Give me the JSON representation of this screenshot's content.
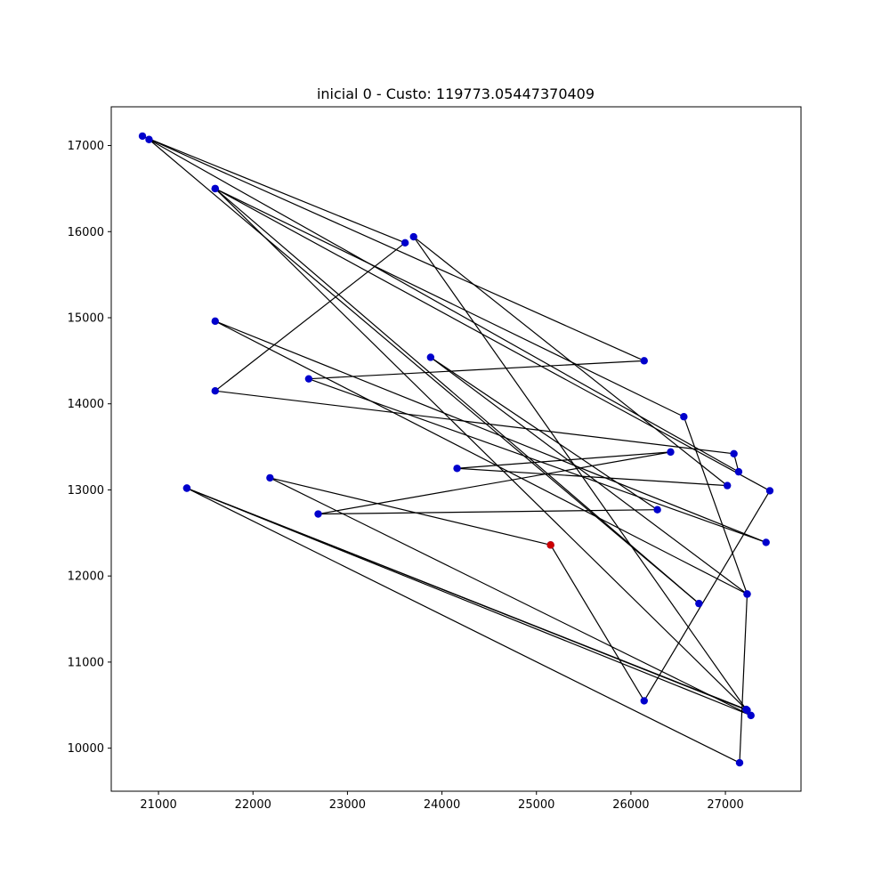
{
  "chart_data": {
    "type": "scatter",
    "title": "inicial 0 - Custo: 119773.05447370409",
    "xlabel": "",
    "ylabel": "",
    "xlim": [
      20500,
      27800
    ],
    "ylim": [
      9500,
      17450
    ],
    "x_ticks": [
      "21000",
      "22000",
      "23000",
      "24000",
      "25000",
      "26000",
      "27000"
    ],
    "y_ticks": [
      "10000",
      "11000",
      "12000",
      "13000",
      "14000",
      "15000",
      "16000",
      "17000"
    ],
    "grid": false,
    "legend": "none",
    "colors": {
      "points": "#0000cc",
      "start_point": "#cc0000",
      "path": "#000000"
    },
    "start_point": {
      "x": 25150,
      "y": 12360
    },
    "tour": [
      {
        "x": 25150,
        "y": 12360
      },
      {
        "x": 22180,
        "y": 13140
      },
      {
        "x": 27270,
        "y": 10380
      },
      {
        "x": 21300,
        "y": 13020
      },
      {
        "x": 27230,
        "y": 10440
      },
      {
        "x": 21600,
        "y": 16500
      },
      {
        "x": 26720,
        "y": 11680
      },
      {
        "x": 20900,
        "y": 17070
      },
      {
        "x": 27140,
        "y": 13210
      },
      {
        "x": 27090,
        "y": 13420
      },
      {
        "x": 21600,
        "y": 14150
      },
      {
        "x": 23610,
        "y": 15870
      },
      {
        "x": 20830,
        "y": 17110
      },
      {
        "x": 26140,
        "y": 14500
      },
      {
        "x": 22590,
        "y": 14290
      },
      {
        "x": 27430,
        "y": 12390
      },
      {
        "x": 21600,
        "y": 14960
      },
      {
        "x": 27230,
        "y": 11790
      },
      {
        "x": 23880,
        "y": 14540
      },
      {
        "x": 26280,
        "y": 12770
      },
      {
        "x": 22690,
        "y": 12720
      },
      {
        "x": 26420,
        "y": 13440
      },
      {
        "x": 24160,
        "y": 13250
      },
      {
        "x": 27020,
        "y": 13050
      },
      {
        "x": 23700,
        "y": 15940
      },
      {
        "x": 27220,
        "y": 10450
      },
      {
        "x": 21300,
        "y": 13020
      },
      {
        "x": 27150,
        "y": 9830
      },
      {
        "x": 27230,
        "y": 11790
      },
      {
        "x": 26560,
        "y": 13850
      },
      {
        "x": 21600,
        "y": 16500
      },
      {
        "x": 27470,
        "y": 12990
      },
      {
        "x": 26140,
        "y": 10550
      },
      {
        "x": 25150,
        "y": 12360
      }
    ]
  }
}
